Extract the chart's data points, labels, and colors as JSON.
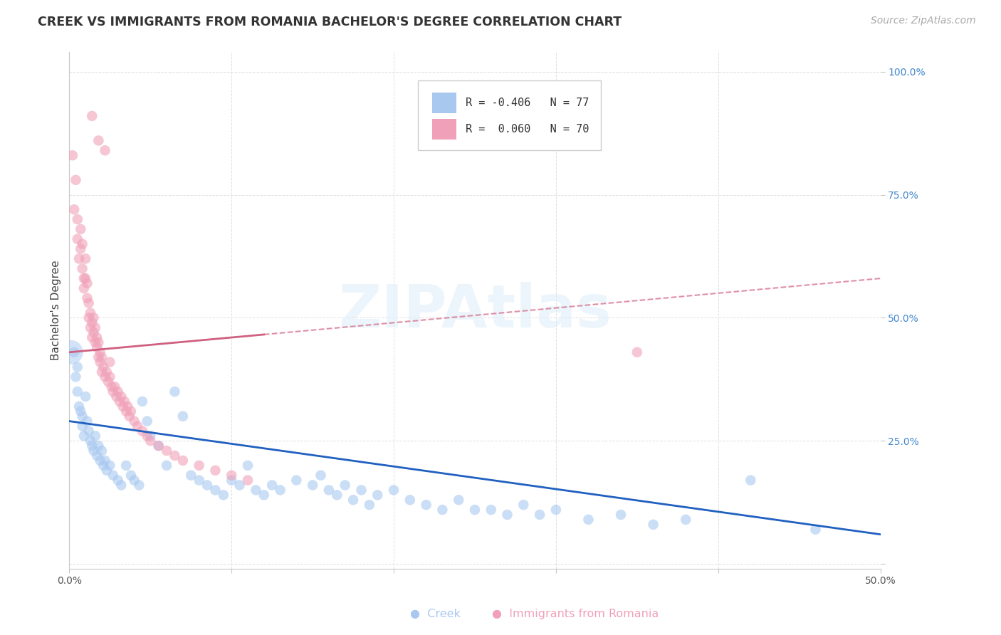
{
  "title": "CREEK VS IMMIGRANTS FROM ROMANIA BACHELOR'S DEGREE CORRELATION CHART",
  "source": "Source: ZipAtlas.com",
  "ylabel": "Bachelor's Degree",
  "xlim": [
    0.0,
    0.5
  ],
  "ylim": [
    -0.01,
    1.04
  ],
  "creek_color": "#a8c8f0",
  "romania_color": "#f0a0b8",
  "creek_line_color": "#2060c0",
  "romania_line_color": "#d06080",
  "background_color": "#ffffff",
  "grid_color": "#d8d8d8",
  "creek_R": -0.406,
  "creek_N": 77,
  "romania_R": 0.06,
  "romania_N": 70,
  "watermark": "ZIPAtlas",
  "title_fontsize": 12.5,
  "label_fontsize": 11,
  "tick_fontsize": 10,
  "source_fontsize": 10,
  "creek_scatter_x": [
    0.003,
    0.004,
    0.005,
    0.005,
    0.006,
    0.007,
    0.008,
    0.008,
    0.009,
    0.01,
    0.011,
    0.012,
    0.013,
    0.014,
    0.015,
    0.016,
    0.017,
    0.018,
    0.019,
    0.02,
    0.021,
    0.022,
    0.023,
    0.025,
    0.027,
    0.03,
    0.032,
    0.035,
    0.038,
    0.04,
    0.043,
    0.045,
    0.048,
    0.05,
    0.055,
    0.06,
    0.065,
    0.07,
    0.075,
    0.08,
    0.085,
    0.09,
    0.095,
    0.1,
    0.105,
    0.11,
    0.115,
    0.12,
    0.125,
    0.13,
    0.14,
    0.15,
    0.155,
    0.16,
    0.165,
    0.17,
    0.175,
    0.18,
    0.185,
    0.19,
    0.2,
    0.21,
    0.22,
    0.23,
    0.24,
    0.25,
    0.26,
    0.27,
    0.28,
    0.29,
    0.3,
    0.32,
    0.34,
    0.36,
    0.38,
    0.42,
    0.46
  ],
  "creek_scatter_y": [
    0.43,
    0.38,
    0.4,
    0.35,
    0.32,
    0.31,
    0.3,
    0.28,
    0.26,
    0.34,
    0.29,
    0.27,
    0.25,
    0.24,
    0.23,
    0.26,
    0.22,
    0.24,
    0.21,
    0.23,
    0.2,
    0.21,
    0.19,
    0.2,
    0.18,
    0.17,
    0.16,
    0.2,
    0.18,
    0.17,
    0.16,
    0.33,
    0.29,
    0.26,
    0.24,
    0.2,
    0.35,
    0.3,
    0.18,
    0.17,
    0.16,
    0.15,
    0.14,
    0.17,
    0.16,
    0.2,
    0.15,
    0.14,
    0.16,
    0.15,
    0.17,
    0.16,
    0.18,
    0.15,
    0.14,
    0.16,
    0.13,
    0.15,
    0.12,
    0.14,
    0.15,
    0.13,
    0.12,
    0.11,
    0.13,
    0.11,
    0.11,
    0.1,
    0.12,
    0.1,
    0.11,
    0.09,
    0.1,
    0.08,
    0.09,
    0.17,
    0.07
  ],
  "romania_scatter_x": [
    0.002,
    0.003,
    0.004,
    0.005,
    0.005,
    0.006,
    0.007,
    0.007,
    0.008,
    0.008,
    0.009,
    0.009,
    0.01,
    0.01,
    0.011,
    0.011,
    0.012,
    0.012,
    0.013,
    0.013,
    0.014,
    0.014,
    0.015,
    0.015,
    0.016,
    0.016,
    0.017,
    0.017,
    0.018,
    0.018,
    0.019,
    0.019,
    0.02,
    0.02,
    0.021,
    0.022,
    0.023,
    0.024,
    0.025,
    0.025,
    0.026,
    0.027,
    0.028,
    0.029,
    0.03,
    0.031,
    0.032,
    0.033,
    0.034,
    0.035,
    0.036,
    0.037,
    0.038,
    0.04,
    0.042,
    0.045,
    0.048,
    0.05,
    0.055,
    0.06,
    0.065,
    0.07,
    0.08,
    0.09,
    0.1,
    0.11,
    0.35,
    0.014,
    0.018,
    0.022
  ],
  "romania_scatter_y": [
    0.83,
    0.72,
    0.78,
    0.7,
    0.66,
    0.62,
    0.68,
    0.64,
    0.6,
    0.65,
    0.58,
    0.56,
    0.62,
    0.58,
    0.54,
    0.57,
    0.53,
    0.5,
    0.51,
    0.48,
    0.49,
    0.46,
    0.5,
    0.47,
    0.48,
    0.45,
    0.46,
    0.44,
    0.45,
    0.42,
    0.43,
    0.41,
    0.42,
    0.39,
    0.4,
    0.38,
    0.39,
    0.37,
    0.38,
    0.41,
    0.36,
    0.35,
    0.36,
    0.34,
    0.35,
    0.33,
    0.34,
    0.32,
    0.33,
    0.31,
    0.32,
    0.3,
    0.31,
    0.29,
    0.28,
    0.27,
    0.26,
    0.25,
    0.24,
    0.23,
    0.22,
    0.21,
    0.2,
    0.19,
    0.18,
    0.17,
    0.43,
    0.91,
    0.86,
    0.84
  ]
}
